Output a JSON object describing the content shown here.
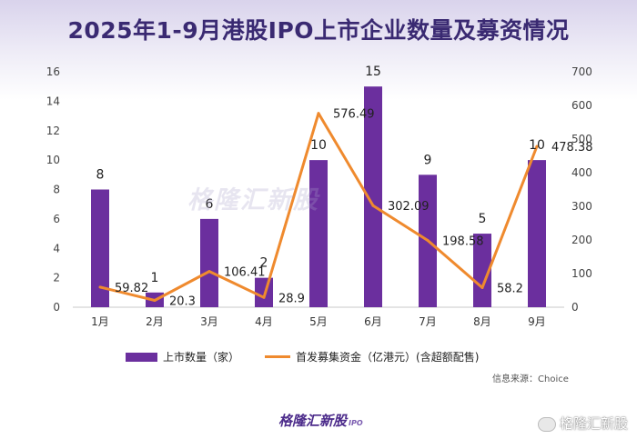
{
  "title": "2025年1-9月港股IPO上市企业数量及募资情况",
  "watermark_text": "格隆汇新股",
  "source_text": "信息来源：Choice",
  "footer": {
    "logo_text": "格隆汇新股",
    "logo_suffix": "IPO",
    "corner_text": "格隆汇新股"
  },
  "colors": {
    "bar": "#6b2f9e",
    "line": "#ef8a2e",
    "title": "#3a2a72"
  },
  "chart_data": {
    "type": "bar",
    "categories": [
      "1月",
      "2月",
      "3月",
      "4月",
      "5月",
      "6月",
      "7月",
      "8月",
      "9月"
    ],
    "series": [
      {
        "name": "上市数量（家）",
        "type": "bar",
        "axis": "left",
        "values": [
          8,
          1,
          6,
          2,
          10,
          15,
          9,
          5,
          10
        ]
      },
      {
        "name": "首发募集资金（亿港元）(含超额配售)",
        "type": "line",
        "axis": "right",
        "values": [
          59.82,
          20.3,
          106.41,
          28.9,
          576.49,
          302.09,
          198.58,
          58.2,
          478.38
        ]
      }
    ],
    "bar_labels": [
      "8",
      "1",
      "6",
      "2",
      "10",
      "15",
      "9",
      "5",
      "10"
    ],
    "line_labels": [
      "59.82",
      "20.3",
      "106.41",
      "28.9",
      "576.49",
      "302.09",
      "198.58",
      "58.2",
      "478.38"
    ],
    "y_left": {
      "min": 0,
      "max": 16,
      "ticks": [
        "0",
        "2",
        "4",
        "6",
        "8",
        "10",
        "12",
        "14",
        "16"
      ]
    },
    "y_right": {
      "min": 0,
      "max": 700,
      "ticks": [
        "0",
        "100",
        "200",
        "300",
        "400",
        "500",
        "600",
        "700"
      ]
    },
    "legend_position": "bottom",
    "grid": false
  }
}
